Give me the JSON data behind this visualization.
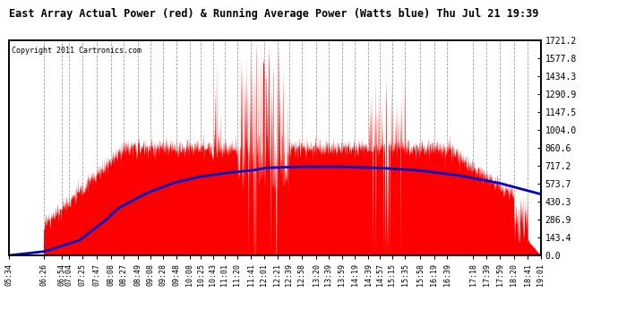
{
  "title": "East Array Actual Power (red) & Running Average Power (Watts blue) Thu Jul 21 19:39",
  "copyright": "Copyright 2011 Cartronics.com",
  "ylabel_right_ticks": [
    0.0,
    143.4,
    286.9,
    430.3,
    573.7,
    717.2,
    860.6,
    1004.0,
    1147.5,
    1290.9,
    1434.3,
    1577.8,
    1721.2
  ],
  "ymax": 1721.2,
  "ymin": 0.0,
  "bg_color": "#ffffff",
  "plot_bg": "#ffffff",
  "grid_color": "#888888",
  "red_color": "#ff0000",
  "blue_color": "#0000cc",
  "xtick_labels": [
    "05:34",
    "06:26",
    "06:54",
    "07:04",
    "07:25",
    "07:47",
    "08:08",
    "08:27",
    "08:49",
    "09:08",
    "09:28",
    "09:48",
    "10:08",
    "10:25",
    "10:43",
    "11:01",
    "11:20",
    "11:41",
    "12:01",
    "12:21",
    "12:39",
    "12:58",
    "13:20",
    "13:39",
    "13:59",
    "14:19",
    "14:39",
    "14:57",
    "15:15",
    "15:35",
    "15:58",
    "16:19",
    "16:39",
    "17:18",
    "17:39",
    "17:59",
    "18:20",
    "18:41",
    "19:01"
  ],
  "blue_keypoints_min": [
    0,
    52,
    106,
    146,
    166,
    209,
    249,
    289,
    329,
    369,
    389,
    443,
    503,
    563,
    623,
    683,
    743,
    807
  ],
  "blue_keypoints_val": [
    0,
    30,
    120,
    280,
    380,
    500,
    580,
    630,
    660,
    680,
    700,
    710,
    710,
    700,
    680,
    640,
    580,
    490
  ]
}
